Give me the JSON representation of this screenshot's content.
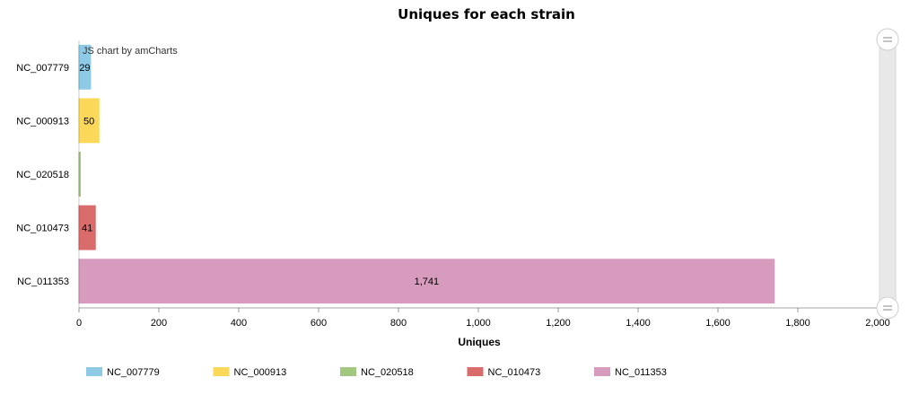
{
  "chart_data": {
    "type": "bar",
    "orientation": "horizontal",
    "title": "Uniques for each strain",
    "xlabel": "Uniques",
    "ylabel": "",
    "categories": [
      "NC_007779",
      "NC_000913",
      "NC_020518",
      "NC_010473",
      "NC_011353"
    ],
    "values": [
      29,
      50,
      2,
      41,
      1741
    ],
    "data_labels": [
      "29",
      "50",
      "",
      "41",
      "1,741"
    ],
    "colors": [
      "#8ecae6",
      "#fbd85a",
      "#a3c77f",
      "#d96b6b",
      "#d69bbd"
    ],
    "xlim": [
      0,
      2000
    ],
    "xticks": [
      0,
      200,
      400,
      600,
      800,
      1000,
      1200,
      1400,
      1600,
      1800,
      2000
    ],
    "xtick_labels": [
      "0",
      "200",
      "400",
      "600",
      "800",
      "1,000",
      "1,200",
      "1,400",
      "1,600",
      "1,800",
      "2,000"
    ],
    "legend": {
      "placement": "bottom-left",
      "entries": [
        "NC_007779",
        "NC_000913",
        "NC_020518",
        "NC_010473",
        "NC_011353"
      ]
    },
    "grid": false
  },
  "credit": "JS chart by amCharts",
  "scrollbar": {
    "grip_icon": "grip-lines-icon"
  }
}
